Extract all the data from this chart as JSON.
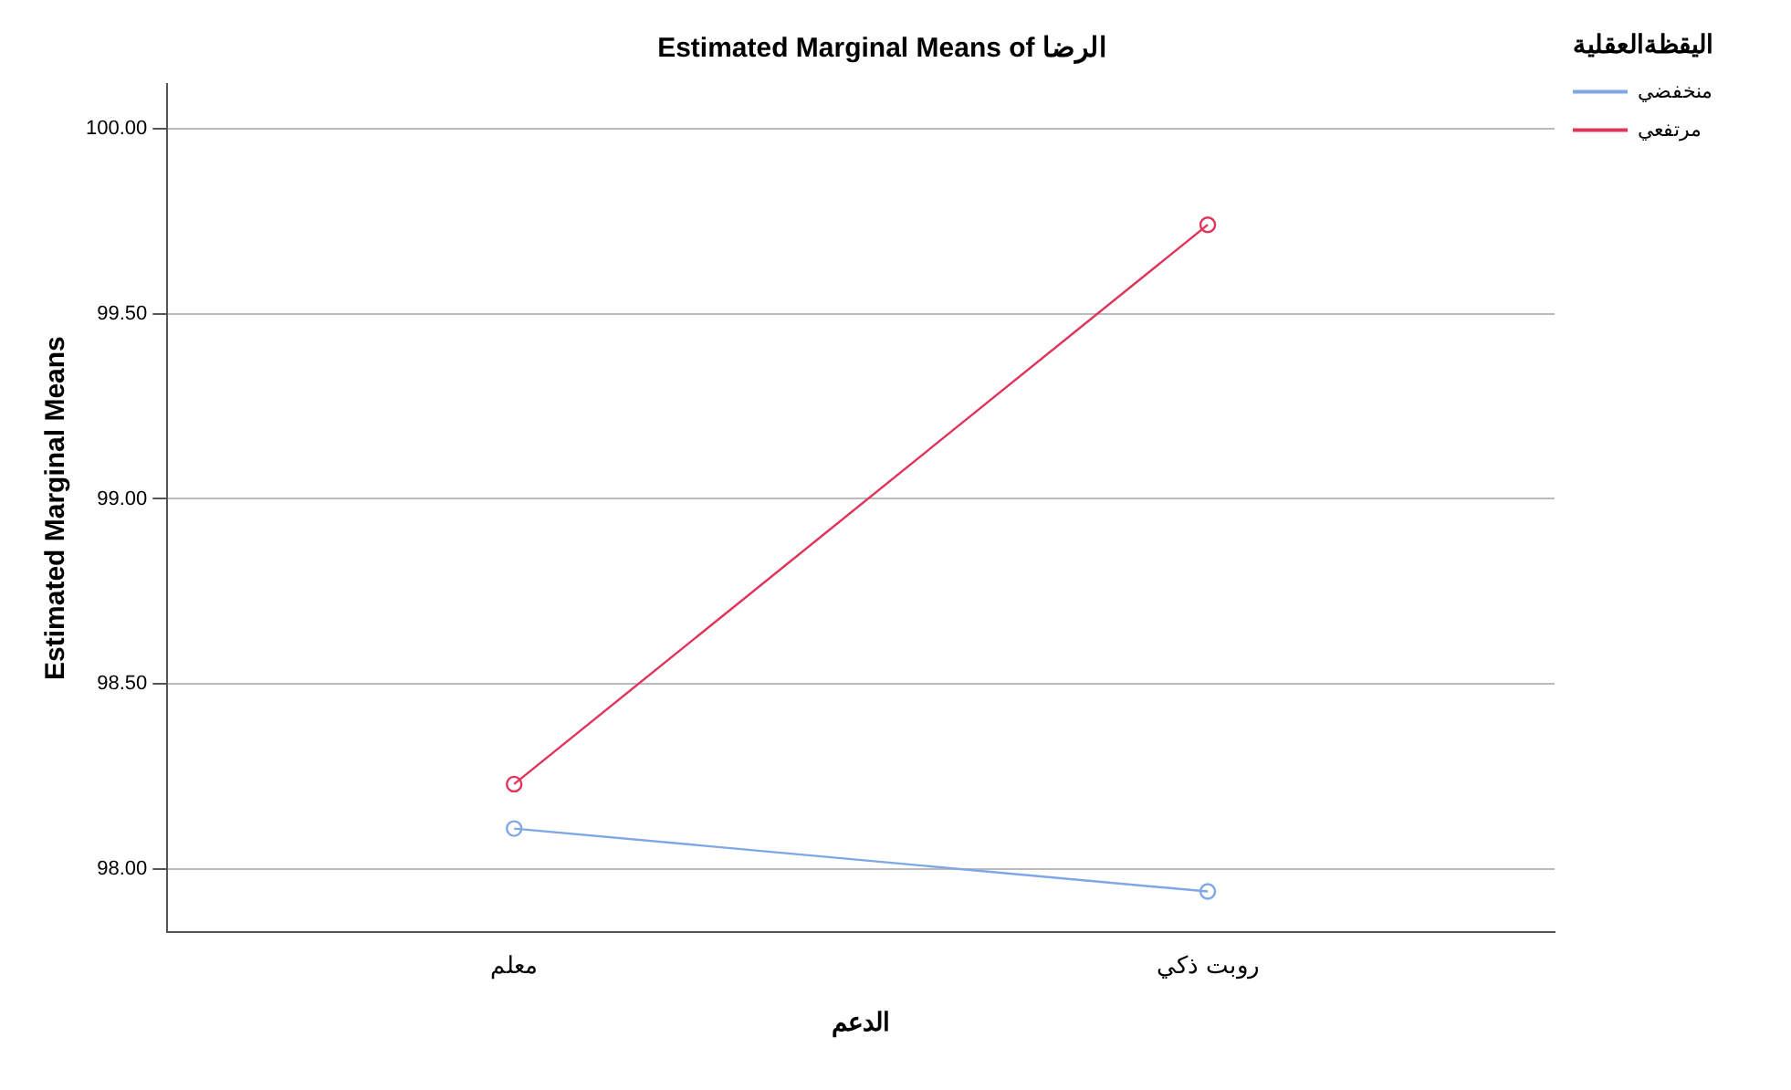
{
  "chart_data": {
    "type": "line",
    "title": "Estimated Marginal Means of الرضا",
    "xlabel": "الدعم",
    "ylabel": "Estimated Marginal Means",
    "legend_title": "اليقظةالعقلية",
    "categories": [
      "معلم",
      "روبت ذكي"
    ],
    "series": [
      {
        "name": "منخفضي",
        "color": "#7fa7e8",
        "values": [
          98.11,
          97.94
        ]
      },
      {
        "name": "مرتفعي",
        "color": "#e0355b",
        "values": [
          98.23,
          99.74
        ]
      }
    ],
    "ylim": [
      97.83,
      100.12
    ],
    "yticks": [
      {
        "value": 98,
        "label": "98.00"
      },
      {
        "value": 98.5,
        "label": "98.50"
      },
      {
        "value": 99,
        "label": "99.00"
      },
      {
        "value": 99.5,
        "label": "99.50"
      },
      {
        "value": 100,
        "label": "100.00"
      }
    ],
    "grid": "y",
    "legend": "top right",
    "marker": "circle",
    "line_style": "solid"
  }
}
